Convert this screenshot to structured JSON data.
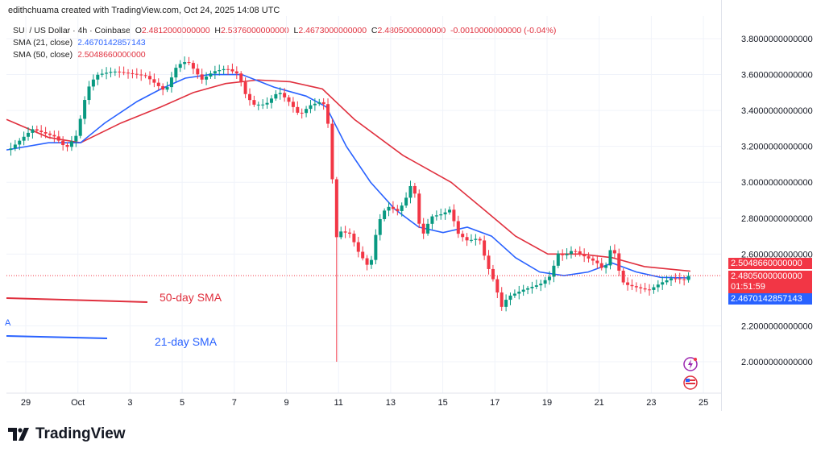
{
  "credit": "edithchuama created with TradingView.com, Oct 24, 2025 14:08 UTC",
  "legend": {
    "symbol": "SUI / US Dollar · 4h · Coinbase",
    "o_label": "O",
    "o": "2.4812000000000",
    "h_label": "H",
    "h": "2.5376000000000",
    "l_label": "L",
    "l": "2.4673000000000",
    "c_label": "C",
    "c": "2.4805000000000",
    "change": "-0.0010000000000 (-0.04%)",
    "sma21_label": "SMA (21, close)",
    "sma21": "2.4670142857143",
    "sma50_label": "SMA (50, close)",
    "sma50": "2.5048660000000"
  },
  "tags": {
    "sma50": "2.5048660000000",
    "price": "2.4805000000000",
    "countdown": "01:51:59",
    "sma21": "2.4670142857143"
  },
  "annotations": {
    "sma50": "50-day SMA",
    "sma21": "21-day SMA",
    "cut": "A"
  },
  "brand": "TradingView",
  "colors": {
    "up": "#089981",
    "down": "#f23645",
    "sma21": "#2962ff",
    "sma50": "#e0303e"
  },
  "chart_data": {
    "type": "candlestick",
    "ylim": [
      1.88,
      3.9
    ],
    "yticks": [
      "3.8000000000000",
      "3.6000000000000",
      "3.4000000000000",
      "3.2000000000000",
      "3.0000000000000",
      "2.8000000000000",
      "2.6000000000000",
      "2.2000000000000",
      "2.0000000000000"
    ],
    "yvals": [
      3.8,
      3.6,
      3.4,
      3.2,
      3.0,
      2.8,
      2.6,
      2.2,
      2.0
    ],
    "xticks": [
      "29",
      "Oct",
      "3",
      "5",
      "7",
      "9",
      "11",
      "13",
      "15",
      "17",
      "19",
      "21",
      "23",
      "25"
    ],
    "xlim_days": [
      -0.75,
      27.3
    ],
    "price_path": [
      [
        -0.74,
        3.18
      ],
      [
        0.25,
        3.3
      ],
      [
        1.1,
        3.25
      ],
      [
        1.55,
        3.18
      ],
      [
        1.95,
        3.25
      ],
      [
        2.35,
        3.5
      ],
      [
        2.7,
        3.58
      ],
      [
        3.35,
        3.6
      ],
      [
        4.6,
        3.58
      ],
      [
        5.35,
        3.5
      ],
      [
        5.8,
        3.65
      ],
      [
        6.2,
        3.68
      ],
      [
        6.75,
        3.58
      ],
      [
        7.2,
        3.63
      ],
      [
        7.7,
        3.65
      ],
      [
        8.15,
        3.62
      ],
      [
        8.45,
        3.5
      ],
      [
        8.75,
        3.45
      ],
      [
        9.2,
        3.45
      ],
      [
        9.7,
        3.52
      ],
      [
        10.15,
        3.45
      ],
      [
        10.5,
        3.38
      ],
      [
        10.9,
        3.43
      ],
      [
        11.4,
        3.45
      ],
      [
        11.55,
        3.35
      ],
      [
        11.7,
        3.25
      ],
      [
        11.85,
        2.65
      ],
      [
        12.0,
        2.72
      ],
      [
        12.45,
        2.7
      ],
      [
        12.75,
        2.6
      ],
      [
        13.2,
        2.5
      ],
      [
        13.5,
        2.75
      ],
      [
        13.85,
        2.85
      ],
      [
        14.3,
        2.82
      ],
      [
        14.6,
        2.9
      ],
      [
        14.85,
        3.0
      ],
      [
        15.1,
        2.75
      ],
      [
        15.25,
        2.7
      ],
      [
        15.55,
        2.8
      ],
      [
        16.0,
        2.82
      ],
      [
        16.3,
        2.85
      ],
      [
        16.55,
        2.72
      ],
      [
        16.95,
        2.68
      ],
      [
        17.4,
        2.7
      ],
      [
        17.7,
        2.55
      ],
      [
        18.0,
        2.45
      ],
      [
        18.25,
        2.32
      ],
      [
        18.5,
        2.38
      ],
      [
        19.1,
        2.42
      ],
      [
        19.75,
        2.45
      ],
      [
        20.2,
        2.5
      ],
      [
        20.35,
        2.62
      ],
      [
        20.65,
        2.6
      ],
      [
        21.0,
        2.63
      ],
      [
        21.3,
        2.6
      ],
      [
        21.9,
        2.55
      ],
      [
        22.2,
        2.5
      ],
      [
        22.5,
        2.65
      ],
      [
        22.75,
        2.5
      ],
      [
        22.95,
        2.42
      ],
      [
        23.4,
        2.4
      ],
      [
        23.9,
        2.38
      ],
      [
        24.35,
        2.42
      ],
      [
        24.8,
        2.45
      ],
      [
        25.3,
        2.44
      ],
      [
        25.5,
        2.48
      ]
    ],
    "spike_low": {
      "day": 11.85,
      "low": 2.0
    },
    "sma21": [
      [
        -0.74,
        3.18
      ],
      [
        0.87,
        3.22
      ],
      [
        2.1,
        3.22
      ],
      [
        3.03,
        3.33
      ],
      [
        4.27,
        3.45
      ],
      [
        5.19,
        3.52
      ],
      [
        6.12,
        3.58
      ],
      [
        7.05,
        3.6
      ],
      [
        8.29,
        3.6
      ],
      [
        9.52,
        3.53
      ],
      [
        10.76,
        3.48
      ],
      [
        11.53,
        3.42
      ],
      [
        12.3,
        3.2
      ],
      [
        13.23,
        3.0
      ],
      [
        14.16,
        2.85
      ],
      [
        15.08,
        2.75
      ],
      [
        16.01,
        2.72
      ],
      [
        16.94,
        2.75
      ],
      [
        17.87,
        2.7
      ],
      [
        18.79,
        2.58
      ],
      [
        19.72,
        2.5
      ],
      [
        20.65,
        2.48
      ],
      [
        21.58,
        2.5
      ],
      [
        22.5,
        2.55
      ],
      [
        23.43,
        2.5
      ],
      [
        24.36,
        2.47
      ],
      [
        25.5,
        2.467
      ]
    ],
    "sma50": [
      [
        -0.74,
        3.35
      ],
      [
        0.87,
        3.25
      ],
      [
        2.1,
        3.22
      ],
      [
        3.65,
        3.33
      ],
      [
        5.19,
        3.42
      ],
      [
        6.43,
        3.5
      ],
      [
        7.67,
        3.55
      ],
      [
        8.9,
        3.57
      ],
      [
        10.14,
        3.56
      ],
      [
        11.38,
        3.52
      ],
      [
        12.61,
        3.35
      ],
      [
        14.47,
        3.15
      ],
      [
        16.32,
        3.0
      ],
      [
        17.56,
        2.85
      ],
      [
        18.79,
        2.7
      ],
      [
        20.03,
        2.6
      ],
      [
        21.27,
        2.6
      ],
      [
        22.5,
        2.58
      ],
      [
        23.74,
        2.53
      ],
      [
        25.5,
        2.505
      ]
    ]
  }
}
